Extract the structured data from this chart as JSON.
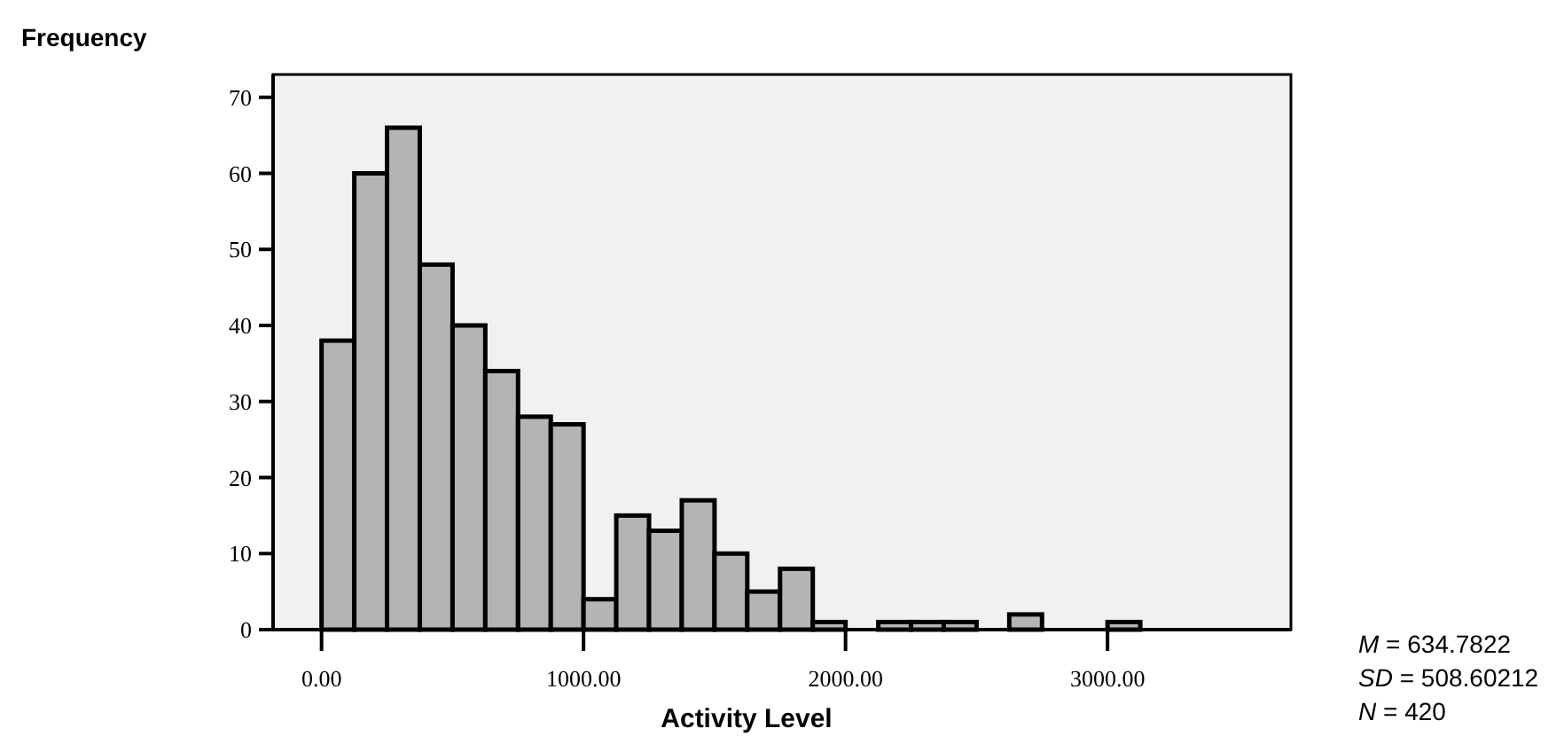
{
  "chart_data": {
    "type": "histogram",
    "xlabel": "Activity Level",
    "ylabel": "Frequency",
    "bins": [
      0,
      125,
      250,
      375,
      500,
      625,
      750,
      875,
      1000,
      1125,
      1250,
      1375,
      1500,
      1625,
      1750,
      1875,
      2000,
      2125,
      2250,
      2375,
      2500,
      2625,
      2750,
      2875,
      3000,
      3125
    ],
    "values": [
      38,
      60,
      66,
      48,
      40,
      34,
      28,
      27,
      4,
      15,
      13,
      17,
      10,
      5,
      8,
      1,
      0,
      1,
      1,
      1,
      0,
      2,
      0,
      0,
      1
    ],
    "color": "#b4b4b4",
    "xlim": [
      -185,
      3700
    ],
    "ylim": [
      0,
      73
    ],
    "xticks": [
      {
        "value": 0,
        "label": "0.00"
      },
      {
        "value": 1000,
        "label": "1000.00"
      },
      {
        "value": 2000,
        "label": "2000.00"
      },
      {
        "value": 3000,
        "label": "3000.00"
      }
    ],
    "yticks": [
      0,
      10,
      20,
      30,
      40,
      50,
      60,
      70
    ],
    "annotations": [
      "M = 634.7822",
      "SD = 508.60212",
      "N = 420"
    ]
  }
}
